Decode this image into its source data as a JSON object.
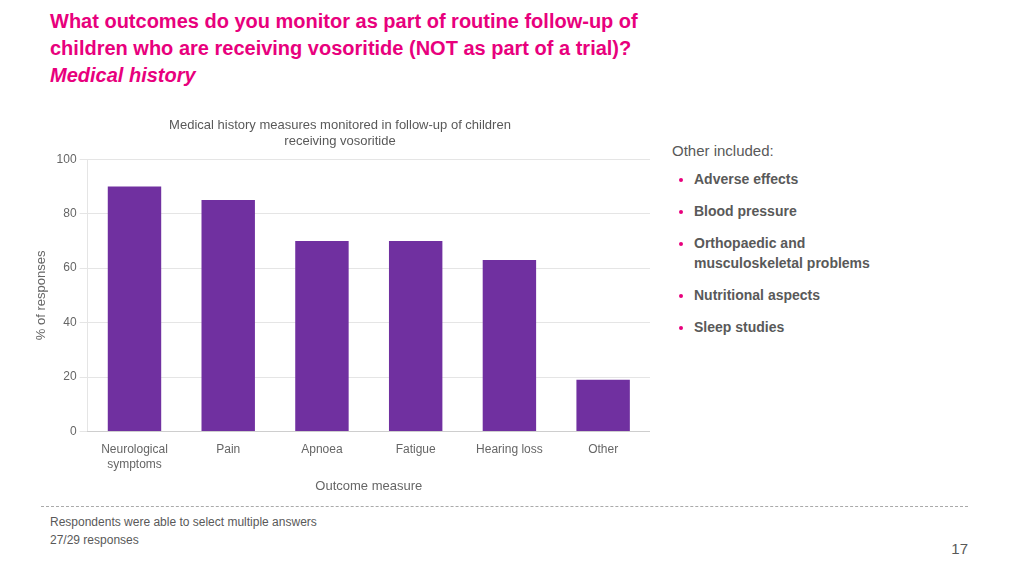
{
  "title": {
    "lines": [
      "What outcomes do you monitor as part of routine follow-up of",
      "children who are receiving vosoritide (NOT as part of a trial)?"
    ],
    "color": "#E8007D"
  },
  "subtitle": {
    "text": "Medical history",
    "color": "#E8007D"
  },
  "annotations": [
    {
      "title": "Other included:",
      "items": [
        "Adverse effects",
        "Blood pressure",
        "Orthopaedic and\nmusculoskeletal problems",
        "Nutritional aspects",
        "Sleep studies"
      ],
      "color": "#E8007D"
    }
  ],
  "footnotes": [
    "Respondents were able to select multiple answers",
    "27/29 responses"
  ],
  "page_number": "17",
  "chart_data": {
    "type": "bar",
    "title": "Medical history measures monitored in follow-up of children\nreceiving vosoritide",
    "categories": [
      "Neurological\nsymptoms",
      "Pain",
      "Apnoea",
      "Fatigue",
      "Hearing loss",
      "Other"
    ],
    "values": [
      90,
      85,
      70,
      70,
      63,
      19
    ],
    "color": "#7030A0",
    "xlabel": "Outcome measure",
    "ylabel": "% of responses",
    "ylim": [
      0,
      100
    ],
    "yticks": [
      0,
      20,
      40,
      60,
      80,
      100
    ],
    "grid": true
  }
}
